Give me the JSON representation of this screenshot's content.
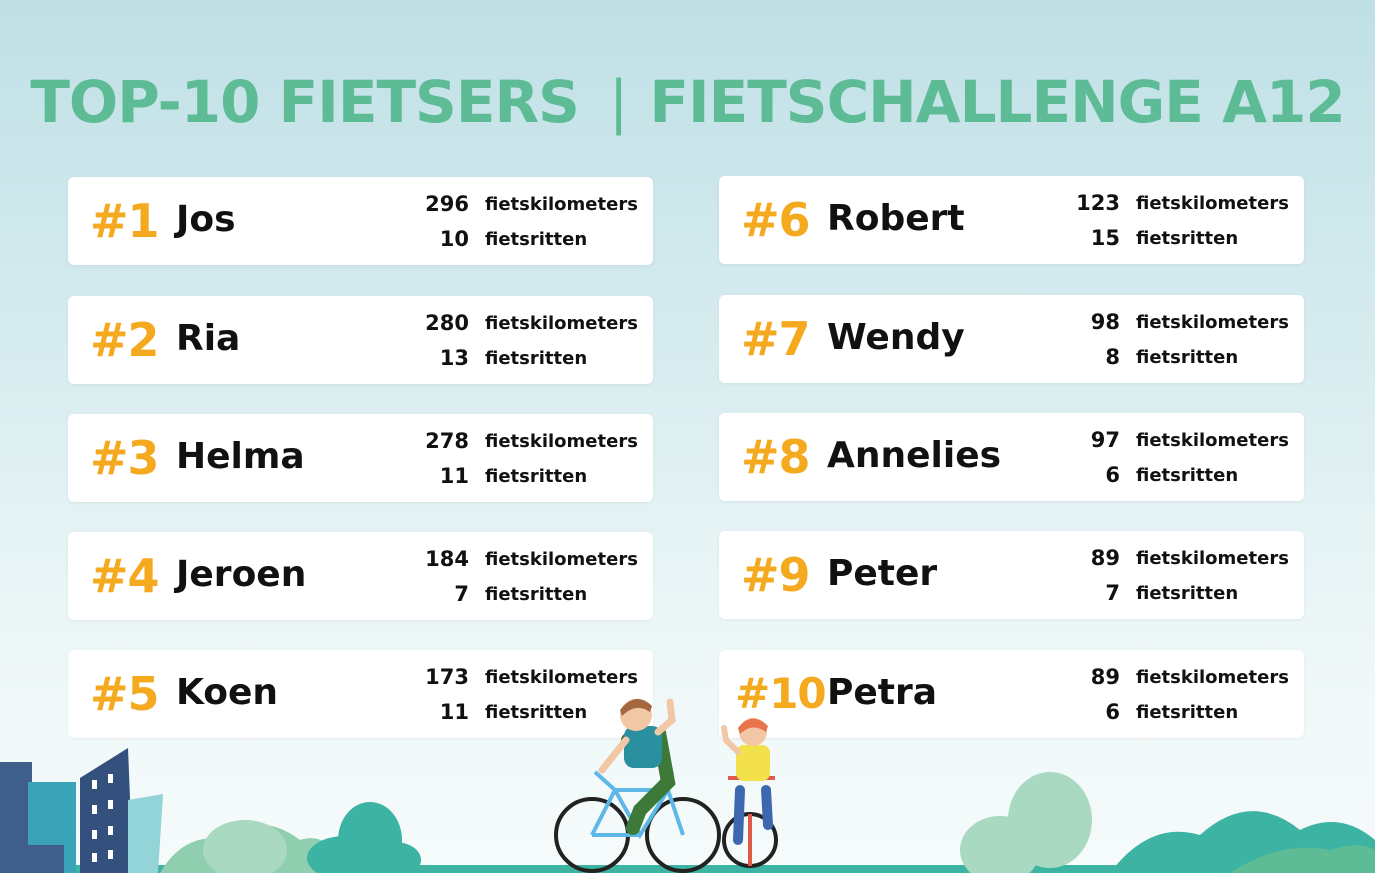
{
  "title": {
    "left": "TOP-10 FIETSERS",
    "separator": "|",
    "right": "FIETSCHALLENGE A12"
  },
  "entries": [
    {
      "rank": "#1",
      "name": "Jos",
      "km": "296",
      "km_label": "fietskilometers",
      "rides": "10",
      "rides_label": "fietsritten"
    },
    {
      "rank": "#2",
      "name": "Ria",
      "km": "280",
      "km_label": "fietskilometers",
      "rides": "13",
      "rides_label": "fietsritten"
    },
    {
      "rank": "#3",
      "name": "Helma",
      "km": "278",
      "km_label": "fietskilometers",
      "rides": "11",
      "rides_label": "fietsritten"
    },
    {
      "rank": "#4",
      "name": "Jeroen",
      "km": "184",
      "km_label": "fietskilometers",
      "rides": "7",
      "rides_label": "fietsritten"
    },
    {
      "rank": "#5",
      "name": "Koen",
      "km": "173",
      "km_label": "fietskilometers",
      "rides": "11",
      "rides_label": "fietsritten"
    },
    {
      "rank": "#6",
      "name": "Robert",
      "km": "123",
      "km_label": "fietskilometers",
      "rides": "15",
      "rides_label": "fietsritten"
    },
    {
      "rank": "#7",
      "name": "Wendy",
      "km": "98",
      "km_label": "fietskilometers",
      "rides": "8",
      "rides_label": "fietsritten"
    },
    {
      "rank": "#8",
      "name": "Annelies",
      "km": "97",
      "km_label": "fietskilometers",
      "rides": "6",
      "rides_label": "fietsritten"
    },
    {
      "rank": "#9",
      "name": "Peter",
      "km": "89",
      "km_label": "fietskilometers",
      "rides": "7",
      "rides_label": "fietsritten"
    },
    {
      "rank": "#10",
      "name": "Petra",
      "km": "89",
      "km_label": "fietskilometers",
      "rides": "6",
      "rides_label": "fietsritten"
    }
  ],
  "colors": {
    "title": "#5dbb95",
    "rank": "#f4a91e",
    "text": "#111111",
    "card": "#ffffff"
  },
  "icons": [
    "cyclist-illustration",
    "child-cyclist-illustration",
    "city-buildings-illustration",
    "tree-bushes-illustration"
  ]
}
